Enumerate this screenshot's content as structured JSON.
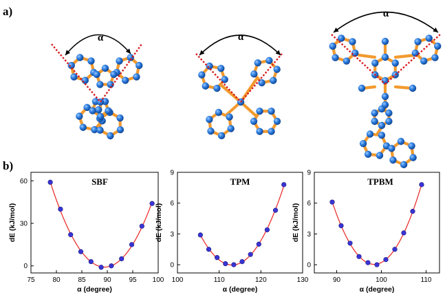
{
  "panel_a": {
    "label": "a)",
    "angle_symbol": "α",
    "molecules": [
      "SBF",
      "TPM",
      "TPBM"
    ],
    "colors": {
      "atom": "#1f6fd6",
      "bond": "#f29a2e",
      "angle_line": "#d7191c",
      "arrow": "#000000"
    }
  },
  "panel_b": {
    "label": "b)"
  },
  "chart_data": [
    {
      "type": "scatter",
      "title": "SBF",
      "xlabel": "α (degree)",
      "ylabel": "dE (kJ/mol)",
      "xlim": [
        75,
        100
      ],
      "ylim": [
        -5,
        66
      ],
      "xticks": [
        75,
        80,
        85,
        90,
        95,
        100
      ],
      "yticks": [
        0,
        30,
        60
      ],
      "grid": false,
      "series": [
        {
          "marker_color": "#3a34d6",
          "fit_color": "#e8231f",
          "x": [
            78.8,
            80.8,
            82.8,
            84.8,
            86.8,
            88.8,
            90.8,
            92.8,
            94.8,
            96.8,
            98.8
          ],
          "y": [
            59,
            40,
            22,
            10,
            3,
            -1,
            0,
            5,
            15,
            28,
            44
          ]
        }
      ]
    },
    {
      "type": "scatter",
      "title": "TPM",
      "xlabel": "α (degree)",
      "ylabel": "dE (kJ/mol)",
      "xlim": [
        100,
        130
      ],
      "ylim": [
        -0.8,
        9
      ],
      "xticks": [
        100,
        110,
        120,
        130
      ],
      "yticks": [
        0,
        3,
        6,
        9
      ],
      "grid": false,
      "series": [
        {
          "marker_color": "#3a34d6",
          "fit_color": "#e8231f",
          "x": [
            105.5,
            107.5,
            109.5,
            111.5,
            113.5,
            115.5,
            117.5,
            119.5,
            121.5,
            123.5,
            125.5
          ],
          "y": [
            2.9,
            1.5,
            0.7,
            0.1,
            0,
            0.3,
            1.0,
            2.0,
            3.4,
            5.3,
            7.8
          ]
        }
      ]
    },
    {
      "type": "scatter",
      "title": "TPBM",
      "xlabel": "α (degree)",
      "ylabel": "dE (kJ/mol)",
      "xlim": [
        85,
        113
      ],
      "ylim": [
        -0.8,
        9
      ],
      "xticks": [
        90,
        100,
        110
      ],
      "yticks": [
        0,
        3,
        6,
        9
      ],
      "grid": false,
      "series": [
        {
          "marker_color": "#3a34d6",
          "fit_color": "#e8231f",
          "x": [
            89,
            91,
            93,
            95,
            97,
            99,
            101,
            103,
            105,
            107,
            109
          ],
          "y": [
            6.1,
            3.8,
            2.1,
            0.8,
            0.2,
            0,
            0.5,
            1.5,
            3.1,
            5.2,
            7.8
          ]
        }
      ]
    }
  ]
}
